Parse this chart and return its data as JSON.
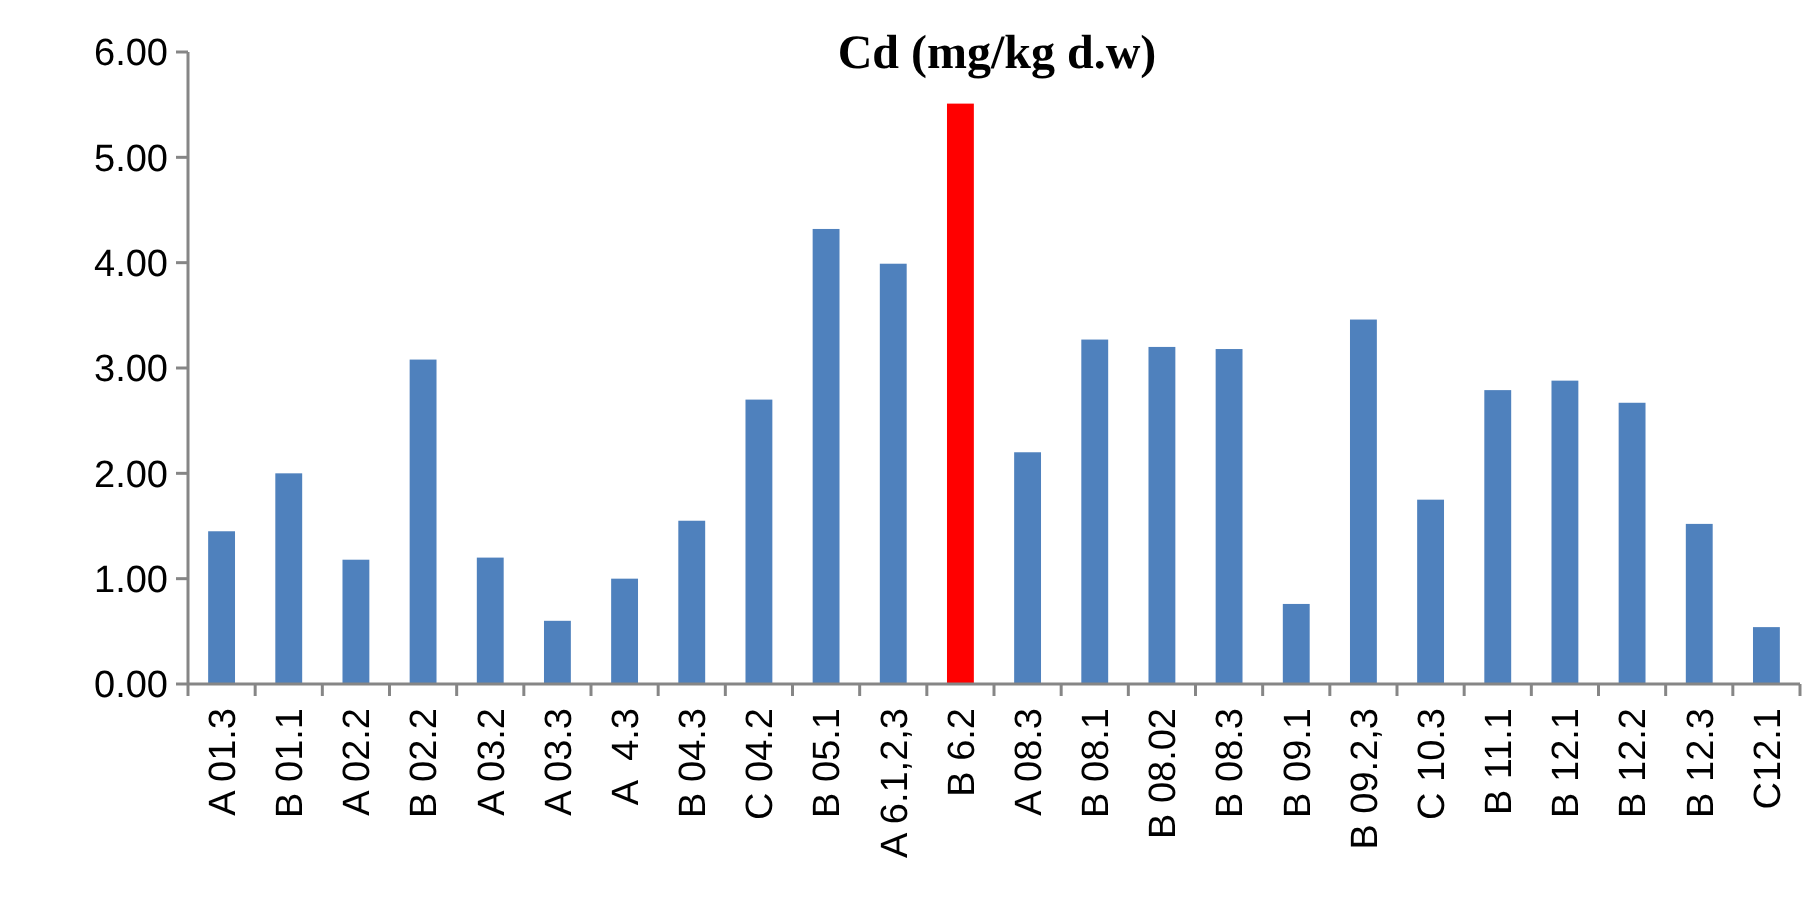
{
  "chart_data": {
    "type": "bar",
    "title": "Cd (mg/kg d.w)",
    "categories": [
      "A 01.3",
      "B 01.1",
      "A 02.2",
      "B 02.2",
      "A 03.2",
      "A 03.3",
      "A  4.3",
      "B 04.3",
      "C 04.2",
      "B 05.1",
      "A 6.1,2,3",
      "B 6.2",
      "A 08.3",
      "B 08.1",
      "B 08.02",
      "B 08.3",
      "B 09.1",
      "B 09.2,3",
      "C 10.3",
      "B 11.1",
      "B 12.1",
      "B 12.2",
      "B 12.3",
      "C12.1"
    ],
    "values": [
      1.45,
      2.0,
      1.18,
      3.08,
      1.2,
      0.6,
      1.0,
      1.55,
      2.7,
      4.32,
      3.99,
      5.51,
      2.2,
      3.27,
      3.2,
      3.18,
      0.76,
      3.46,
      1.75,
      2.79,
      2.88,
      2.67,
      1.52,
      0.54
    ],
    "colors": [
      "#4f81bd",
      "#4f81bd",
      "#4f81bd",
      "#4f81bd",
      "#4f81bd",
      "#4f81bd",
      "#4f81bd",
      "#4f81bd",
      "#4f81bd",
      "#4f81bd",
      "#4f81bd",
      "#ff0000",
      "#4f81bd",
      "#4f81bd",
      "#4f81bd",
      "#4f81bd",
      "#4f81bd",
      "#4f81bd",
      "#4f81bd",
      "#4f81bd",
      "#4f81bd",
      "#4f81bd",
      "#4f81bd",
      "#4f81bd"
    ],
    "ylim": [
      0,
      6
    ],
    "yticks": [
      {
        "value": 0,
        "label": "0.00"
      },
      {
        "value": 1,
        "label": "1.00"
      },
      {
        "value": 2,
        "label": "2.00"
      },
      {
        "value": 3,
        "label": "3.00"
      },
      {
        "value": 4,
        "label": "4.00"
      },
      {
        "value": 5,
        "label": "5.00"
      },
      {
        "value": 6,
        "label": "6.00"
      }
    ],
    "grid": false
  }
}
